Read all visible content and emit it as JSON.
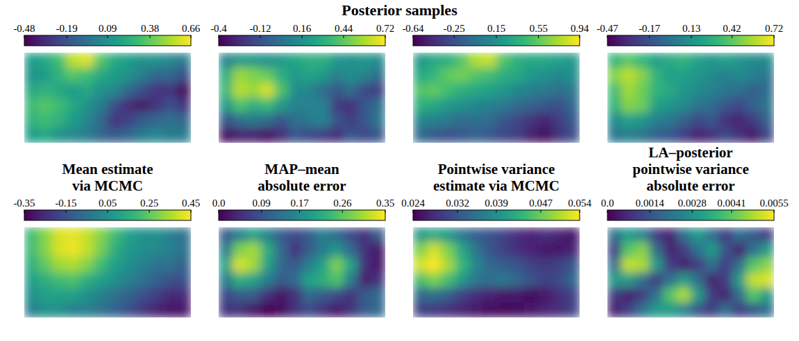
{
  "heading": "Posterior samples",
  "chart_data": [
    {
      "type": "heatmap",
      "color": "viridis",
      "tick_labels": false,
      "color_range": [
        -0.48,
        0.66
      ],
      "color_ticks": [
        -0.48,
        -0.19,
        0.09,
        0.38,
        0.66
      ],
      "cells": [
        [
          0.15,
          0.2,
          0.3,
          0.55,
          0.6,
          0.35,
          0.2,
          0.15,
          0.1,
          0.1,
          0.05,
          0.0
        ],
        [
          0.1,
          0.15,
          0.25,
          0.35,
          0.3,
          0.2,
          0.15,
          0.1,
          0.0,
          -0.1,
          -0.1,
          -0.2
        ],
        [
          0.2,
          0.25,
          0.2,
          0.15,
          0.2,
          0.1,
          0.05,
          -0.1,
          -0.2,
          -0.3,
          -0.3,
          -0.45
        ],
        [
          0.3,
          0.35,
          0.3,
          0.2,
          0.1,
          0.0,
          -0.2,
          -0.35,
          -0.4,
          -0.3,
          -0.2,
          -0.3
        ],
        [
          0.25,
          0.3,
          0.25,
          0.15,
          0.05,
          -0.1,
          -0.3,
          -0.25,
          -0.15,
          -0.1,
          -0.05,
          -0.1
        ],
        [
          0.15,
          0.2,
          0.1,
          0.05,
          0.0,
          -0.1,
          -0.15,
          -0.1,
          0.0,
          0.05,
          0.0,
          0.0
        ]
      ]
    },
    {
      "type": "heatmap",
      "color": "viridis",
      "tick_labels": false,
      "color_range": [
        -0.4,
        0.72
      ],
      "color_ticks": [
        -0.4,
        -0.12,
        0.16,
        0.44,
        0.72
      ],
      "cells": [
        [
          0.1,
          0.2,
          0.2,
          0.15,
          0.2,
          0.25,
          0.3,
          0.3,
          0.2,
          0.15,
          0.2,
          0.15
        ],
        [
          0.3,
          0.55,
          0.5,
          0.45,
          0.3,
          0.2,
          0.25,
          0.2,
          0.1,
          0.15,
          0.1,
          0.0
        ],
        [
          0.35,
          0.6,
          0.55,
          0.65,
          0.4,
          0.15,
          0.1,
          0.0,
          -0.1,
          0.0,
          -0.15,
          -0.2
        ],
        [
          0.2,
          0.4,
          0.3,
          0.35,
          0.2,
          0.1,
          0.1,
          0.1,
          -0.2,
          -0.25,
          -0.1,
          0.0
        ],
        [
          -0.1,
          0.0,
          0.05,
          0.0,
          -0.1,
          0.0,
          0.05,
          0.1,
          -0.1,
          -0.2,
          -0.1,
          0.05
        ],
        [
          -0.35,
          -0.3,
          -0.3,
          -0.35,
          -0.25,
          -0.1,
          -0.15,
          -0.2,
          -0.25,
          -0.1,
          -0.15,
          -0.1
        ]
      ]
    },
    {
      "type": "heatmap",
      "color": "viridis",
      "tick_labels": false,
      "color_range": [
        -0.64,
        0.94
      ],
      "color_ticks": [
        -0.64,
        -0.25,
        0.15,
        0.55,
        0.94
      ],
      "cells": [
        [
          0.2,
          0.3,
          0.35,
          0.5,
          0.75,
          0.8,
          0.5,
          0.35,
          0.3,
          0.3,
          0.25,
          0.2
        ],
        [
          0.3,
          0.4,
          0.55,
          0.6,
          0.5,
          0.45,
          0.35,
          0.3,
          0.2,
          0.15,
          0.1,
          0.15
        ],
        [
          0.5,
          0.55,
          0.45,
          0.35,
          0.3,
          0.25,
          0.2,
          0.1,
          0.05,
          0.0,
          -0.05,
          0.0
        ],
        [
          0.35,
          0.3,
          0.2,
          0.15,
          0.1,
          0.05,
          0.0,
          -0.1,
          -0.15,
          -0.2,
          -0.25,
          -0.1
        ],
        [
          0.1,
          0.05,
          0.0,
          -0.1,
          -0.05,
          -0.1,
          -0.2,
          -0.3,
          -0.4,
          -0.5,
          -0.35,
          -0.2
        ],
        [
          -0.1,
          -0.2,
          -0.25,
          -0.2,
          -0.15,
          -0.2,
          -0.3,
          -0.35,
          -0.5,
          -0.6,
          -0.4,
          -0.25
        ]
      ]
    },
    {
      "type": "heatmap",
      "color": "viridis",
      "tick_labels": false,
      "color_range": [
        -0.47,
        0.72
      ],
      "color_ticks": [
        -0.47,
        -0.17,
        0.13,
        0.42,
        0.72
      ],
      "cells": [
        [
          0.3,
          0.4,
          0.3,
          0.2,
          0.25,
          0.3,
          0.2,
          0.15,
          0.2,
          0.15,
          0.1,
          0.1
        ],
        [
          0.5,
          0.6,
          0.5,
          0.3,
          0.2,
          0.2,
          0.15,
          0.1,
          0.05,
          0.1,
          0.05,
          0.0
        ],
        [
          0.35,
          0.55,
          0.45,
          0.3,
          0.25,
          0.15,
          0.1,
          0.05,
          0.0,
          -0.05,
          -0.1,
          -0.05
        ],
        [
          0.3,
          0.5,
          0.45,
          0.2,
          0.15,
          0.1,
          0.0,
          -0.05,
          -0.15,
          -0.2,
          -0.1,
          0.0
        ],
        [
          0.1,
          0.2,
          0.15,
          0.05,
          0.0,
          -0.1,
          -0.2,
          -0.15,
          -0.3,
          -0.35,
          -0.25,
          -0.1
        ],
        [
          0.0,
          0.05,
          0.0,
          -0.1,
          -0.15,
          -0.25,
          -0.35,
          -0.3,
          -0.2,
          -0.3,
          -0.4,
          -0.2
        ]
      ]
    },
    {
      "type": "heatmap",
      "color": "viridis",
      "tick_labels": false,
      "title": "Mean estimate via MCMC",
      "color_range": [
        -0.35,
        0.45
      ],
      "color_ticks": [
        -0.35,
        -0.15,
        0.05,
        0.25,
        0.45
      ],
      "cells": [
        [
          0.2,
          0.3,
          0.4,
          0.42,
          0.38,
          0.3,
          0.2,
          0.1,
          0.05,
          0.05,
          0.0,
          -0.05
        ],
        [
          0.2,
          0.3,
          0.4,
          0.43,
          0.38,
          0.28,
          0.15,
          0.08,
          0.05,
          0.02,
          0.0,
          -0.05
        ],
        [
          0.15,
          0.25,
          0.33,
          0.35,
          0.3,
          0.2,
          0.1,
          0.05,
          0.0,
          -0.05,
          -0.05,
          -0.1
        ],
        [
          0.1,
          0.15,
          0.2,
          0.22,
          0.15,
          0.1,
          0.05,
          0.0,
          -0.05,
          -0.1,
          -0.15,
          -0.15
        ],
        [
          0.05,
          0.1,
          0.1,
          0.1,
          0.05,
          0.0,
          -0.05,
          -0.1,
          -0.15,
          -0.2,
          -0.25,
          -0.25
        ],
        [
          0.0,
          0.05,
          0.05,
          0.0,
          0.0,
          -0.05,
          -0.1,
          -0.15,
          -0.22,
          -0.28,
          -0.3,
          -0.3
        ]
      ]
    },
    {
      "type": "heatmap",
      "color": "viridis",
      "tick_labels": false,
      "title": "MAP–mean absolute error",
      "color_range": [
        0,
        0.35
      ],
      "color_ticks": [
        {
          "value": 0,
          "label": "0.0"
        },
        0.09,
        0.17,
        0.26,
        0.35
      ],
      "cells": [
        [
          0.1,
          0.15,
          0.2,
          0.15,
          0.1,
          0.08,
          0.1,
          0.15,
          0.12,
          0.08,
          0.05,
          0.1
        ],
        [
          0.15,
          0.28,
          0.3,
          0.22,
          0.12,
          0.05,
          0.1,
          0.15,
          0.18,
          0.12,
          0.05,
          0.02
        ],
        [
          0.2,
          0.33,
          0.3,
          0.2,
          0.12,
          0.1,
          0.15,
          0.2,
          0.28,
          0.2,
          0.05,
          0.02
        ],
        [
          0.15,
          0.22,
          0.2,
          0.15,
          0.1,
          0.12,
          0.2,
          0.22,
          0.25,
          0.15,
          0.03,
          0.05
        ],
        [
          0.08,
          0.1,
          0.1,
          0.05,
          0.02,
          0.05,
          0.12,
          0.1,
          0.08,
          0.05,
          0.1,
          0.12
        ],
        [
          0.05,
          0.05,
          0.02,
          0.0,
          0.01,
          0.05,
          0.08,
          0.05,
          0.02,
          0.05,
          0.1,
          0.12
        ]
      ]
    },
    {
      "type": "heatmap",
      "color": "viridis",
      "tick_labels": false,
      "title": "Pointwise variance estimate via MCMC",
      "color_range": [
        0.024,
        0.054
      ],
      "color_ticks": [
        0.024,
        0.032,
        0.039,
        0.047,
        0.054
      ],
      "cells": [
        [
          0.04,
          0.042,
          0.04,
          0.036,
          0.033,
          0.032,
          0.03,
          0.028,
          0.027,
          0.028,
          0.027,
          0.026
        ],
        [
          0.048,
          0.052,
          0.048,
          0.042,
          0.036,
          0.032,
          0.03,
          0.028,
          0.027,
          0.026,
          0.026,
          0.027
        ],
        [
          0.052,
          0.054,
          0.05,
          0.044,
          0.038,
          0.034,
          0.033,
          0.032,
          0.03,
          0.029,
          0.03,
          0.032
        ],
        [
          0.045,
          0.048,
          0.045,
          0.04,
          0.036,
          0.035,
          0.036,
          0.034,
          0.032,
          0.03,
          0.031,
          0.034
        ],
        [
          0.034,
          0.035,
          0.033,
          0.03,
          0.028,
          0.027,
          0.026,
          0.026,
          0.025,
          0.026,
          0.028,
          0.03
        ],
        [
          0.03,
          0.029,
          0.028,
          0.027,
          0.026,
          0.025,
          0.025,
          0.025,
          0.026,
          0.027,
          0.028,
          0.03
        ]
      ]
    },
    {
      "type": "heatmap",
      "color": "viridis",
      "tick_labels": false,
      "title": "LA–posterior pointwise variance absolute error",
      "color_range": [
        0,
        0.0055
      ],
      "color_ticks": [
        {
          "value": 0,
          "label": "0.0"
        },
        0.0014,
        0.0028,
        0.0041,
        0.0055
      ],
      "cells": [
        [
          0.002,
          0.003,
          0.0025,
          0.001,
          0.0005,
          0.002,
          0.003,
          0.002,
          0.001,
          0.002,
          0.0015,
          0.001
        ],
        [
          0.001,
          0.004,
          0.0045,
          0.002,
          0.0005,
          0.001,
          0.002,
          0.003,
          0.0015,
          0.0005,
          0.002,
          0.003
        ],
        [
          0.002,
          0.005,
          0.0048,
          0.003,
          0.001,
          0.0005,
          0.001,
          0.002,
          0.001,
          0.002,
          0.004,
          0.0045
        ],
        [
          0.003,
          0.003,
          0.002,
          0.001,
          0.002,
          0.003,
          0.002,
          0.0005,
          0.001,
          0.003,
          0.005,
          0.0052
        ],
        [
          0.001,
          0.0005,
          0.001,
          0.002,
          0.004,
          0.0048,
          0.003,
          0.001,
          0.0005,
          0.002,
          0.004,
          0.003
        ],
        [
          0.0005,
          0.001,
          0.002,
          0.003,
          0.003,
          0.0025,
          0.0015,
          0.001,
          0.002,
          0.001,
          0.0015,
          0.002
        ]
      ]
    }
  ]
}
